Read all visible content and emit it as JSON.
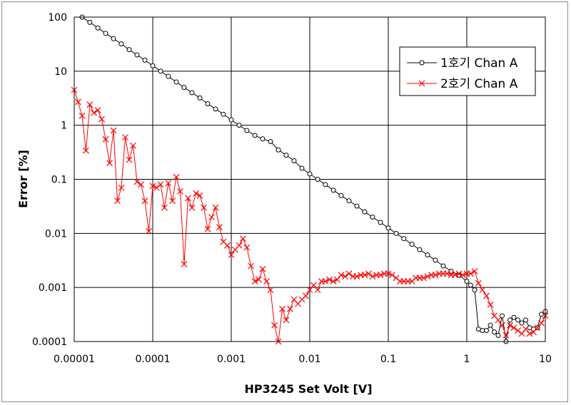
{
  "chart_data": {
    "type": "line",
    "title": "",
    "xlabel": "HP3245 Set Volt [V]",
    "ylabel": "Error [%]",
    "x_scale": "log",
    "y_scale": "log",
    "xlim": [
      1e-05,
      10
    ],
    "ylim": [
      0.0001,
      100
    ],
    "x_ticks": [
      1e-05,
      0.0001,
      0.001,
      0.01,
      0.1,
      1,
      10
    ],
    "x_tick_labels": [
      "0.00001",
      "0.0001",
      "0.001",
      "0.01",
      "0.1",
      "1",
      "10"
    ],
    "y_ticks": [
      0.0001,
      0.001,
      0.01,
      0.1,
      1,
      10,
      100
    ],
    "y_tick_labels": [
      "0.0001",
      "0.001",
      "0.01",
      "0.1",
      "1",
      "10",
      "100"
    ],
    "grid": true,
    "legend_position": "top-right",
    "series": [
      {
        "name": "1호기 Chan A",
        "color": "#000000",
        "marker": "circle",
        "points": [
          [
            1.26e-05,
            100
          ],
          [
            1.58e-05,
            80
          ],
          [
            2e-05,
            63
          ],
          [
            2.51e-05,
            50
          ],
          [
            3.16e-05,
            40
          ],
          [
            3.98e-05,
            32
          ],
          [
            5.01e-05,
            25
          ],
          [
            6.31e-05,
            20
          ],
          [
            7.94e-05,
            16
          ],
          [
            0.0001,
            12.6
          ],
          [
            0.000126,
            10
          ],
          [
            0.000158,
            8
          ],
          [
            0.0002,
            6.3
          ],
          [
            0.000251,
            5
          ],
          [
            0.000316,
            4
          ],
          [
            0.000398,
            3.2
          ],
          [
            0.000501,
            2.5
          ],
          [
            0.000631,
            2
          ],
          [
            0.000794,
            1.6
          ],
          [
            0.001,
            1.26
          ],
          [
            0.00126,
            1
          ],
          [
            0.00158,
            0.8
          ],
          [
            0.002,
            0.65
          ],
          [
            0.00251,
            0.56
          ],
          [
            0.00316,
            0.5
          ],
          [
            0.00398,
            0.35
          ],
          [
            0.00501,
            0.28
          ],
          [
            0.00631,
            0.22
          ],
          [
            0.00794,
            0.16
          ],
          [
            0.01,
            0.126
          ],
          [
            0.0126,
            0.1
          ],
          [
            0.0158,
            0.08
          ],
          [
            0.02,
            0.063
          ],
          [
            0.0251,
            0.05
          ],
          [
            0.0316,
            0.04
          ],
          [
            0.0398,
            0.032
          ],
          [
            0.0501,
            0.025
          ],
          [
            0.0631,
            0.02
          ],
          [
            0.0794,
            0.016
          ],
          [
            0.1,
            0.0126
          ],
          [
            0.126,
            0.01
          ],
          [
            0.158,
            0.008
          ],
          [
            0.2,
            0.0063
          ],
          [
            0.251,
            0.005
          ],
          [
            0.316,
            0.004
          ],
          [
            0.398,
            0.0032
          ],
          [
            0.501,
            0.0025
          ],
          [
            0.631,
            0.002
          ],
          [
            0.794,
            0.0017
          ],
          [
            1,
            0.0013
          ],
          [
            1.12,
            0.0011
          ],
          [
            1.26,
            0.0009
          ],
          [
            1.41,
            0.00017
          ],
          [
            1.58,
            0.00016
          ],
          [
            1.78,
            0.00016
          ],
          [
            2,
            0.0002
          ],
          [
            2.24,
            0.00015
          ],
          [
            2.51,
            0.00013
          ],
          [
            2.82,
            0.0003
          ],
          [
            3.16,
            0.0001
          ],
          [
            3.55,
            0.00025
          ],
          [
            3.98,
            0.00028
          ],
          [
            4.47,
            0.00025
          ],
          [
            5.01,
            0.00022
          ],
          [
            5.62,
            0.00025
          ],
          [
            6.31,
            0.00018
          ],
          [
            7.08,
            0.00017
          ],
          [
            7.94,
            0.00018
          ],
          [
            8.91,
            0.00032
          ],
          [
            10,
            0.00036
          ]
        ]
      },
      {
        "name": "2호기 Chan A",
        "color": "#ff0000",
        "marker": "x",
        "points": [
          [
            1e-05,
            4.5
          ],
          [
            1.12e-05,
            2.7
          ],
          [
            1.26e-05,
            1.5
          ],
          [
            1.41e-05,
            0.34
          ],
          [
            1.58e-05,
            2.4
          ],
          [
            1.78e-05,
            1.7
          ],
          [
            2e-05,
            1.9
          ],
          [
            2.24e-05,
            1.3
          ],
          [
            2.51e-05,
            0.55
          ],
          [
            2.82e-05,
            0.2
          ],
          [
            3.16e-05,
            0.8
          ],
          [
            3.55e-05,
            0.04
          ],
          [
            3.98e-05,
            0.07
          ],
          [
            4.47e-05,
            0.6
          ],
          [
            5.01e-05,
            0.23
          ],
          [
            5.62e-05,
            0.42
          ],
          [
            6.31e-05,
            0.09
          ],
          [
            7.08e-05,
            0.08
          ],
          [
            7.94e-05,
            0.04
          ],
          [
            8.91e-05,
            0.011
          ],
          [
            0.0001,
            0.075
          ],
          [
            0.000112,
            0.07
          ],
          [
            0.000126,
            0.08
          ],
          [
            0.000141,
            0.03
          ],
          [
            0.000158,
            0.085
          ],
          [
            0.000178,
            0.04
          ],
          [
            0.0002,
            0.11
          ],
          [
            0.000224,
            0.06
          ],
          [
            0.000251,
            0.0027
          ],
          [
            0.000282,
            0.045
          ],
          [
            0.000316,
            0.03
          ],
          [
            0.000355,
            0.055
          ],
          [
            0.000398,
            0.05
          ],
          [
            0.000447,
            0.03
          ],
          [
            0.000501,
            0.012
          ],
          [
            0.000562,
            0.02
          ],
          [
            0.000631,
            0.03
          ],
          [
            0.000708,
            0.013
          ],
          [
            0.000794,
            0.007
          ],
          [
            0.000891,
            0.006
          ],
          [
            0.001,
            0.004
          ],
          [
            0.00112,
            0.005
          ],
          [
            0.00126,
            0.006
          ],
          [
            0.00141,
            0.008
          ],
          [
            0.00158,
            0.0055
          ],
          [
            0.00178,
            0.0025
          ],
          [
            0.002,
            0.0013
          ],
          [
            0.00224,
            0.0014
          ],
          [
            0.00251,
            0.0022
          ],
          [
            0.00282,
            0.0013
          ],
          [
            0.00316,
            0.0009
          ],
          [
            0.00355,
            0.0002
          ],
          [
            0.00398,
            0.0001
          ],
          [
            0.00447,
            0.0004
          ],
          [
            0.00501,
            0.00025
          ],
          [
            0.00562,
            0.0004
          ],
          [
            0.00631,
            0.0006
          ],
          [
            0.00708,
            0.0005
          ],
          [
            0.00794,
            0.0006
          ],
          [
            0.00891,
            0.0007
          ],
          [
            0.01,
            0.0009
          ],
          [
            0.0112,
            0.0011
          ],
          [
            0.0126,
            0.0009
          ],
          [
            0.0141,
            0.0013
          ],
          [
            0.0158,
            0.0013
          ],
          [
            0.0178,
            0.0014
          ],
          [
            0.02,
            0.0013
          ],
          [
            0.0224,
            0.0014
          ],
          [
            0.0251,
            0.0017
          ],
          [
            0.0282,
            0.0016
          ],
          [
            0.0316,
            0.0018
          ],
          [
            0.0355,
            0.0016
          ],
          [
            0.0398,
            0.0016
          ],
          [
            0.0447,
            0.0017
          ],
          [
            0.0501,
            0.0017
          ],
          [
            0.0562,
            0.0018
          ],
          [
            0.0631,
            0.0016
          ],
          [
            0.0708,
            0.0017
          ],
          [
            0.0794,
            0.0017
          ],
          [
            0.0891,
            0.0018
          ],
          [
            0.1,
            0.0018
          ],
          [
            0.112,
            0.0017
          ],
          [
            0.126,
            0.0015
          ],
          [
            0.141,
            0.0013
          ],
          [
            0.158,
            0.0013
          ],
          [
            0.178,
            0.0013
          ],
          [
            0.2,
            0.0013
          ],
          [
            0.224,
            0.0015
          ],
          [
            0.251,
            0.0015
          ],
          [
            0.282,
            0.0015
          ],
          [
            0.316,
            0.0016
          ],
          [
            0.355,
            0.0017
          ],
          [
            0.398,
            0.0017
          ],
          [
            0.447,
            0.0018
          ],
          [
            0.501,
            0.0018
          ],
          [
            0.562,
            0.0018
          ],
          [
            0.631,
            0.0017
          ],
          [
            0.708,
            0.0017
          ],
          [
            0.794,
            0.0018
          ],
          [
            0.891,
            0.0017
          ],
          [
            1,
            0.0018
          ],
          [
            1.12,
            0.0018
          ],
          [
            1.26,
            0.002
          ],
          [
            1.41,
            0.0012
          ],
          [
            1.58,
            0.0009
          ],
          [
            1.78,
            0.0007
          ],
          [
            2,
            0.00048
          ],
          [
            2.24,
            0.0003
          ],
          [
            2.51,
            0.00025
          ],
          [
            2.82,
            0.0002
          ],
          [
            3.16,
            0.00013
          ],
          [
            3.55,
            0.0002
          ],
          [
            3.98,
            0.00018
          ],
          [
            4.47,
            0.00016
          ],
          [
            5.01,
            0.00014
          ],
          [
            5.62,
            0.00017
          ],
          [
            6.31,
            0.00014
          ],
          [
            7.08,
            0.00015
          ],
          [
            7.94,
            0.00018
          ],
          [
            8.91,
            0.00022
          ],
          [
            10,
            0.0003
          ]
        ]
      }
    ]
  }
}
